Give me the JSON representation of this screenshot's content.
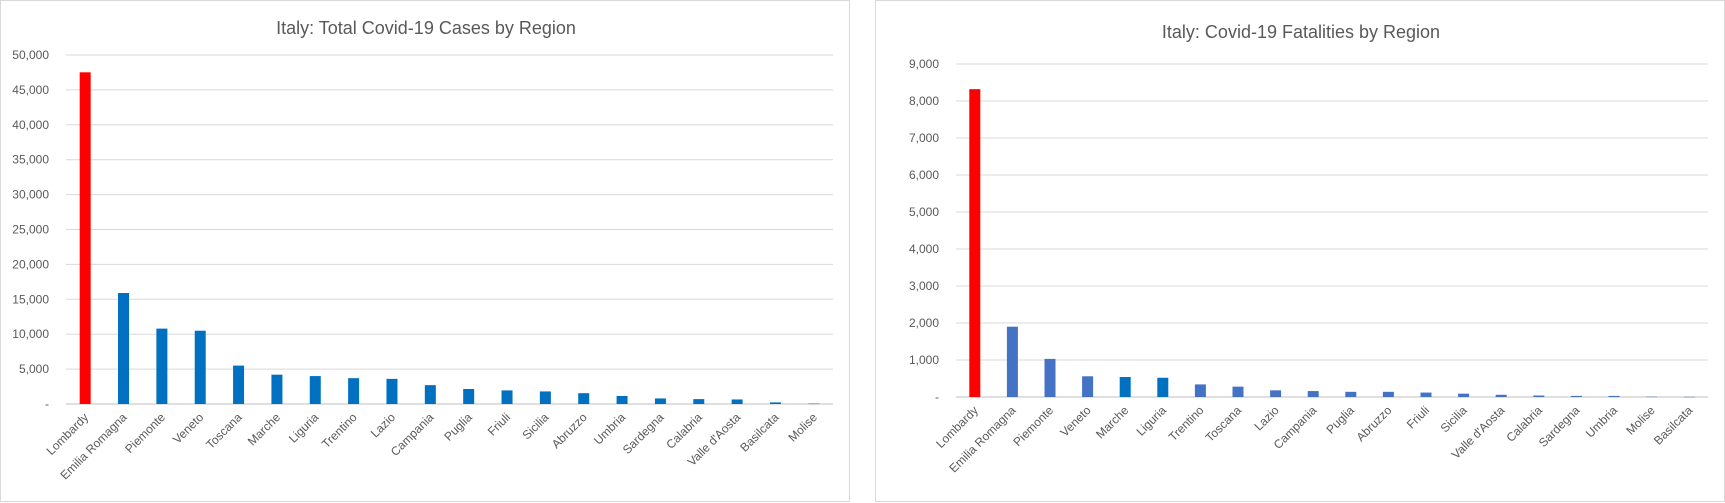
{
  "chart_data": [
    {
      "type": "bar",
      "title": "Italy: Total Covid-19 Cases by Region",
      "xlabel": "",
      "ylabel": "",
      "ylim": [
        0,
        50000
      ],
      "yticks": [
        "-",
        "5,000",
        "10,000",
        "15,000",
        "20,000",
        "25,000",
        "30,000",
        "35,000",
        "40,000",
        "45,000",
        "50,000"
      ],
      "grid": true,
      "highlight_color": "#ff0000",
      "bar_color": "#0070c0",
      "categories": [
        "Lombardy",
        "Emilia Romagna",
        "Piemonte",
        "Veneto",
        "Toscana",
        "Marche",
        "Liguria",
        "Trentino",
        "Lazio",
        "Campania",
        "Puglia",
        "Friuli",
        "Sicilia",
        "Abruzzo",
        "Umbria",
        "Sardegna",
        "Calabria",
        "Valle d'Aosta",
        "Basilcata",
        "Molise"
      ],
      "values": [
        47520,
        15900,
        10800,
        10500,
        5500,
        4200,
        4000,
        3700,
        3600,
        2700,
        2150,
        1950,
        1800,
        1550,
        1150,
        800,
        700,
        650,
        230,
        60
      ]
    },
    {
      "type": "bar",
      "title": "Italy: Covid-19 Fatalities by Region",
      "xlabel": "",
      "ylabel": "",
      "ylim": [
        0,
        9000
      ],
      "yticks": [
        "-",
        "1,000",
        "2,000",
        "3,000",
        "4,000",
        "5,000",
        "6,000",
        "7,000",
        "8,000",
        "9,000"
      ],
      "grid": true,
      "highlight_color": "#ff0000",
      "bar_color": "#4472c4",
      "alt_bar_color": "#0070c0",
      "alt_bar_categories": [
        "Marche",
        "Liguria"
      ],
      "categories": [
        "Lombardy",
        "Emilia Romagna",
        "Piemonte",
        "Veneto",
        "Marche",
        "Liguria",
        "Trentino",
        "Toscana",
        "Lazio",
        "Campania",
        "Puglia",
        "Abruzzo",
        "Friuli",
        "Sicilia",
        "Valle d'Aosta",
        "Calabria",
        "Sardegna",
        "Umbria",
        "Molise",
        "Basilcata"
      ],
      "values": [
        8320,
        1900,
        1030,
        560,
        540,
        520,
        340,
        280,
        180,
        160,
        140,
        140,
        120,
        90,
        60,
        40,
        30,
        30,
        10,
        5
      ]
    }
  ]
}
